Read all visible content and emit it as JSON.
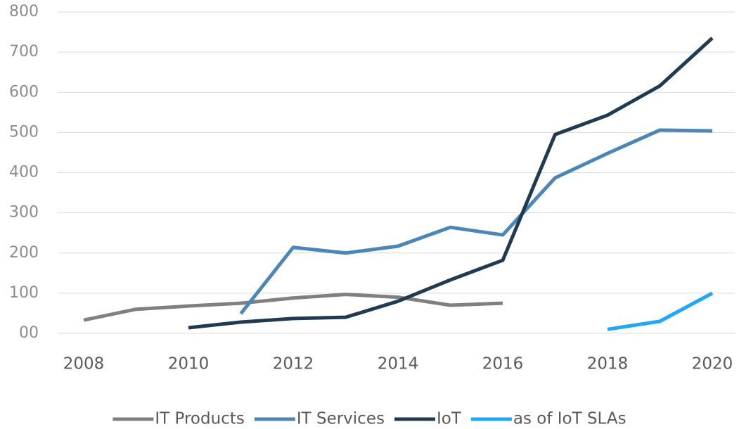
{
  "chart_data": {
    "type": "line",
    "x": [
      2008,
      2009,
      2010,
      2011,
      2012,
      2013,
      2014,
      2015,
      2016,
      2017,
      2018,
      2019,
      2020
    ],
    "series": [
      {
        "name": "IT Products",
        "color": "#808080",
        "values": [
          33,
          60,
          68,
          75,
          88,
          97,
          90,
          70,
          75,
          null,
          null,
          null,
          null
        ]
      },
      {
        "name": "IT Services",
        "color": "#4a86b8",
        "values": [
          null,
          null,
          null,
          49,
          214,
          200,
          217,
          264,
          245,
          387,
          448,
          506,
          504
        ]
      },
      {
        "name": "IoT",
        "color": "#203a52",
        "values": [
          null,
          null,
          14,
          28,
          37,
          40,
          80,
          133,
          182,
          495,
          543,
          616,
          735
        ]
      },
      {
        "name": "as of IoT SLAs",
        "color": "#1ea8f5",
        "values": [
          null,
          null,
          null,
          null,
          null,
          null,
          null,
          null,
          null,
          null,
          10,
          30,
          100
        ]
      }
    ],
    "xlim": [
      2008,
      2020
    ],
    "xticks": [
      2008,
      2010,
      2012,
      2014,
      2016,
      2018,
      2020
    ],
    "ylim": [
      0,
      800
    ],
    "yticks": [
      {
        "value": 0,
        "label": "00"
      },
      100,
      200,
      300,
      400,
      500,
      600,
      700,
      800
    ],
    "grid": true,
    "legend": "bottom"
  }
}
